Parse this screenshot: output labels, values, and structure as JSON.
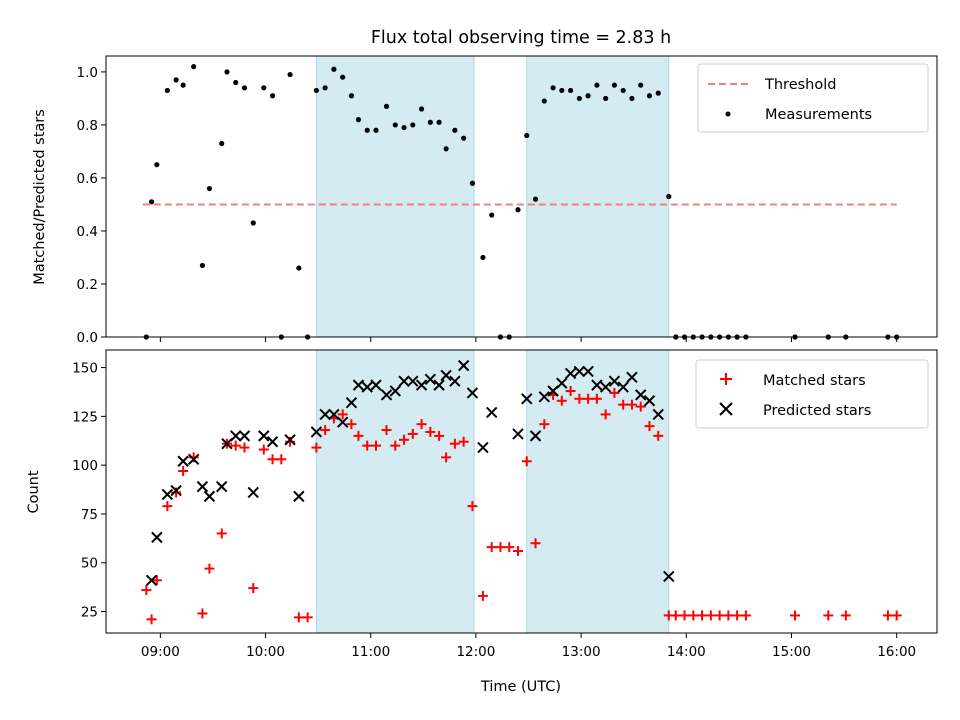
{
  "chart_data": [
    {
      "type": "scatter",
      "title": "Flux total observing time = 2.83 h",
      "xlabel": "",
      "ylabel": "Matched/Predicted stars",
      "xlim": [
        "08:29",
        "16:23"
      ],
      "ylim": [
        0,
        1.06
      ],
      "yticks": [
        0.0,
        0.2,
        0.4,
        0.6,
        0.8,
        1.0
      ],
      "ytick_labels": [
        "0.0",
        "0.2",
        "0.4",
        "0.6",
        "0.8",
        "1.0"
      ],
      "grid": false,
      "legend_position": "top-right",
      "legend": [
        "Threshold",
        "Measurements"
      ],
      "threshold": {
        "name": "Threshold",
        "value": 0.5,
        "x_start": "08:50",
        "x_end": "16:00",
        "color": "#f08080"
      },
      "shaded_intervals": [
        [
          "10:29",
          "11:59"
        ],
        [
          "12:29",
          "13:50"
        ]
      ],
      "series": [
        {
          "name": "Measurements",
          "marker": "dot",
          "color": "#000000",
          "points": [
            [
              "08:52",
              0.0
            ],
            [
              "08:55",
              0.51
            ],
            [
              "08:58",
              0.65
            ],
            [
              "09:04",
              0.93
            ],
            [
              "09:09",
              0.97
            ],
            [
              "09:13",
              0.95
            ],
            [
              "09:19",
              1.02
            ],
            [
              "09:24",
              0.27
            ],
            [
              "09:28",
              0.56
            ],
            [
              "09:35",
              0.73
            ],
            [
              "09:38",
              1.0
            ],
            [
              "09:43",
              0.96
            ],
            [
              "09:48",
              0.94
            ],
            [
              "09:53",
              0.43
            ],
            [
              "09:59",
              0.94
            ],
            [
              "10:04",
              0.91
            ],
            [
              "10:09",
              0.0
            ],
            [
              "10:14",
              0.99
            ],
            [
              "10:19",
              0.26
            ],
            [
              "10:24",
              0.0
            ],
            [
              "10:29",
              0.93
            ],
            [
              "10:34",
              0.94
            ],
            [
              "10:39",
              1.01
            ],
            [
              "10:44",
              0.98
            ],
            [
              "10:49",
              0.91
            ],
            [
              "10:53",
              0.82
            ],
            [
              "10:58",
              0.78
            ],
            [
              "11:03",
              0.78
            ],
            [
              "11:09",
              0.87
            ],
            [
              "11:14",
              0.8
            ],
            [
              "11:19",
              0.79
            ],
            [
              "11:24",
              0.8
            ],
            [
              "11:29",
              0.86
            ],
            [
              "11:34",
              0.81
            ],
            [
              "11:39",
              0.81
            ],
            [
              "11:43",
              0.71
            ],
            [
              "11:48",
              0.78
            ],
            [
              "11:53",
              0.75
            ],
            [
              "11:58",
              0.58
            ],
            [
              "12:04",
              0.3
            ],
            [
              "12:09",
              0.46
            ],
            [
              "12:14",
              0.0
            ],
            [
              "12:19",
              0.0
            ],
            [
              "12:24",
              0.48
            ],
            [
              "12:29",
              0.76
            ],
            [
              "12:34",
              0.52
            ],
            [
              "12:39",
              0.89
            ],
            [
              "12:44",
              0.94
            ],
            [
              "12:49",
              0.93
            ],
            [
              "12:54",
              0.93
            ],
            [
              "12:59",
              0.9
            ],
            [
              "13:04",
              0.91
            ],
            [
              "13:09",
              0.95
            ],
            [
              "13:14",
              0.9
            ],
            [
              "13:19",
              0.95
            ],
            [
              "13:24",
              0.93
            ],
            [
              "13:29",
              0.9
            ],
            [
              "13:34",
              0.95
            ],
            [
              "13:39",
              0.91
            ],
            [
              "13:44",
              0.92
            ],
            [
              "13:50",
              0.53
            ],
            [
              "13:54",
              0.0
            ],
            [
              "13:59",
              0.0
            ],
            [
              "14:04",
              0.0
            ],
            [
              "14:09",
              0.0
            ],
            [
              "14:14",
              0.0
            ],
            [
              "14:19",
              0.0
            ],
            [
              "14:24",
              0.0
            ],
            [
              "14:29",
              0.0
            ],
            [
              "14:34",
              0.0
            ],
            [
              "15:02",
              0.0
            ],
            [
              "15:21",
              0.0
            ],
            [
              "15:31",
              0.0
            ],
            [
              "15:55",
              0.0
            ],
            [
              "16:00",
              0.0
            ]
          ]
        }
      ]
    },
    {
      "type": "scatter",
      "title": "",
      "xlabel": "Time (UTC)",
      "ylabel": "Count",
      "xlim": [
        "08:29",
        "16:23"
      ],
      "ylim": [
        14,
        159
      ],
      "xticks": [
        "09:00",
        "10:00",
        "11:00",
        "12:00",
        "13:00",
        "14:00",
        "15:00",
        "16:00"
      ],
      "yticks": [
        25,
        50,
        75,
        100,
        125,
        150
      ],
      "ytick_labels": [
        "25",
        "50",
        "75",
        "100",
        "125",
        "150"
      ],
      "grid": false,
      "legend_position": "top-right",
      "legend": [
        "Matched stars",
        "Predicted stars"
      ],
      "shaded_intervals": [
        [
          "10:29",
          "11:59"
        ],
        [
          "12:29",
          "13:50"
        ]
      ],
      "series": [
        {
          "name": "Matched stars",
          "marker": "plus",
          "color": "#ff0000",
          "points": [
            [
              "08:52",
              36
            ],
            [
              "08:55",
              21
            ],
            [
              "08:58",
              41
            ],
            [
              "09:04",
              79
            ],
            [
              "09:09",
              86
            ],
            [
              "09:13",
              97
            ],
            [
              "09:19",
              104
            ],
            [
              "09:24",
              24
            ],
            [
              "09:28",
              47
            ],
            [
              "09:35",
              65
            ],
            [
              "09:38",
              111
            ],
            [
              "09:43",
              110
            ],
            [
              "09:48",
              109
            ],
            [
              "09:53",
              37
            ],
            [
              "09:59",
              108
            ],
            [
              "10:04",
              103
            ],
            [
              "10:09",
              103
            ],
            [
              "10:14",
              112
            ],
            [
              "10:19",
              22
            ],
            [
              "10:24",
              22
            ],
            [
              "10:29",
              109
            ],
            [
              "10:34",
              118
            ],
            [
              "10:39",
              124
            ],
            [
              "10:44",
              126
            ],
            [
              "10:49",
              121
            ],
            [
              "10:53",
              115
            ],
            [
              "10:58",
              110
            ],
            [
              "11:03",
              110
            ],
            [
              "11:09",
              118
            ],
            [
              "11:14",
              110
            ],
            [
              "11:19",
              113
            ],
            [
              "11:24",
              116
            ],
            [
              "11:29",
              121
            ],
            [
              "11:34",
              117
            ],
            [
              "11:39",
              115
            ],
            [
              "11:43",
              104
            ],
            [
              "11:48",
              111
            ],
            [
              "11:53",
              112
            ],
            [
              "11:58",
              79
            ],
            [
              "12:04",
              33
            ],
            [
              "12:09",
              58
            ],
            [
              "12:14",
              58
            ],
            [
              "12:19",
              58
            ],
            [
              "12:24",
              56
            ],
            [
              "12:29",
              102
            ],
            [
              "12:34",
              60
            ],
            [
              "12:39",
              121
            ],
            [
              "12:44",
              136
            ],
            [
              "12:49",
              133
            ],
            [
              "12:54",
              138
            ],
            [
              "12:59",
              134
            ],
            [
              "13:04",
              134
            ],
            [
              "13:09",
              134
            ],
            [
              "13:14",
              126
            ],
            [
              "13:19",
              137
            ],
            [
              "13:24",
              131
            ],
            [
              "13:29",
              131
            ],
            [
              "13:34",
              130
            ],
            [
              "13:39",
              120
            ],
            [
              "13:44",
              115
            ],
            [
              "13:50",
              23
            ],
            [
              "13:54",
              23
            ],
            [
              "13:59",
              23
            ],
            [
              "14:04",
              23
            ],
            [
              "14:09",
              23
            ],
            [
              "14:14",
              23
            ],
            [
              "14:19",
              23
            ],
            [
              "14:24",
              23
            ],
            [
              "14:29",
              23
            ],
            [
              "14:34",
              23
            ],
            [
              "15:02",
              23
            ],
            [
              "15:21",
              23
            ],
            [
              "15:31",
              23
            ],
            [
              "15:55",
              23
            ],
            [
              "16:00",
              23
            ]
          ]
        },
        {
          "name": "Predicted stars",
          "marker": "x",
          "color": "#000000",
          "points": [
            [
              "08:55",
              41
            ],
            [
              "08:58",
              63
            ],
            [
              "09:04",
              85
            ],
            [
              "09:09",
              87
            ],
            [
              "09:13",
              102
            ],
            [
              "09:19",
              103
            ],
            [
              "09:24",
              89
            ],
            [
              "09:28",
              84
            ],
            [
              "09:35",
              89
            ],
            [
              "09:38",
              111
            ],
            [
              "09:43",
              115
            ],
            [
              "09:48",
              115
            ],
            [
              "09:53",
              86
            ],
            [
              "09:59",
              115
            ],
            [
              "10:04",
              112
            ],
            [
              "10:14",
              113
            ],
            [
              "10:19",
              84
            ],
            [
              "10:29",
              117
            ],
            [
              "10:34",
              126
            ],
            [
              "10:39",
              126
            ],
            [
              "10:44",
              122
            ],
            [
              "10:49",
              132
            ],
            [
              "10:53",
              141
            ],
            [
              "10:58",
              140
            ],
            [
              "11:03",
              141
            ],
            [
              "11:09",
              136
            ],
            [
              "11:14",
              138
            ],
            [
              "11:19",
              143
            ],
            [
              "11:24",
              143
            ],
            [
              "11:29",
              141
            ],
            [
              "11:34",
              144
            ],
            [
              "11:39",
              141
            ],
            [
              "11:43",
              146
            ],
            [
              "11:48",
              143
            ],
            [
              "11:53",
              151
            ],
            [
              "11:58",
              137
            ],
            [
              "12:04",
              109
            ],
            [
              "12:09",
              127
            ],
            [
              "12:24",
              116
            ],
            [
              "12:29",
              134
            ],
            [
              "12:34",
              115
            ],
            [
              "12:39",
              135
            ],
            [
              "12:44",
              138
            ],
            [
              "12:49",
              142
            ],
            [
              "12:54",
              147
            ],
            [
              "12:59",
              148
            ],
            [
              "13:04",
              148
            ],
            [
              "13:09",
              141
            ],
            [
              "13:14",
              140
            ],
            [
              "13:19",
              143
            ],
            [
              "13:24",
              140
            ],
            [
              "13:29",
              145
            ],
            [
              "13:34",
              136
            ],
            [
              "13:39",
              133
            ],
            [
              "13:44",
              126
            ],
            [
              "13:50",
              43
            ]
          ]
        }
      ]
    }
  ],
  "colors": {
    "shade": "#add8e6",
    "matched": "#ff0000",
    "predicted": "#000000",
    "threshold": "#f08080"
  }
}
